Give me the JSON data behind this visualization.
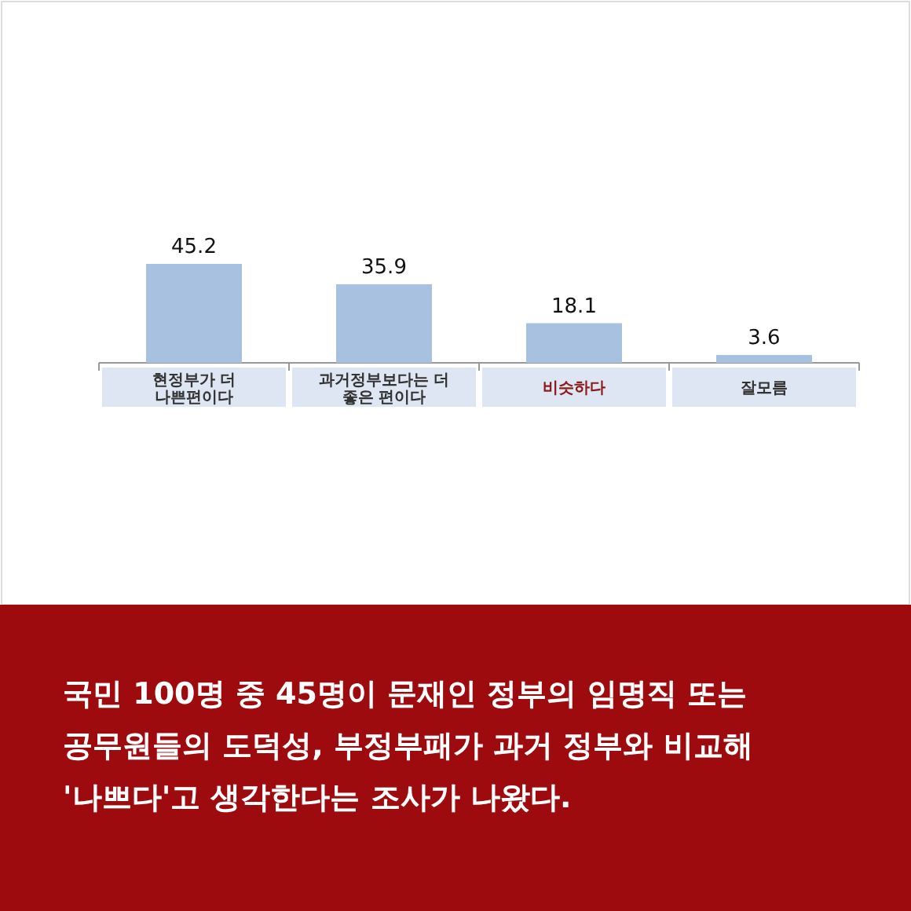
{
  "chart_data": {
    "type": "bar",
    "categories": [
      "현정부가 더\n나쁜편이다",
      "과거정부보다는 더\n좋은 편이다",
      "비슷하다",
      "잘모름"
    ],
    "values": [
      45.2,
      35.9,
      18.1,
      3.6
    ],
    "color": "#a9c1e0",
    "data_labels": true,
    "annotations": [
      "국민 100명 중 45명이 문재인 정부의 임명직 또는\n공무원들의 도덕성, 부정부패가 과거 정부와 비교해\n'나쁘다'고 생각한다는 조사가 나왔다."
    ]
  }
}
